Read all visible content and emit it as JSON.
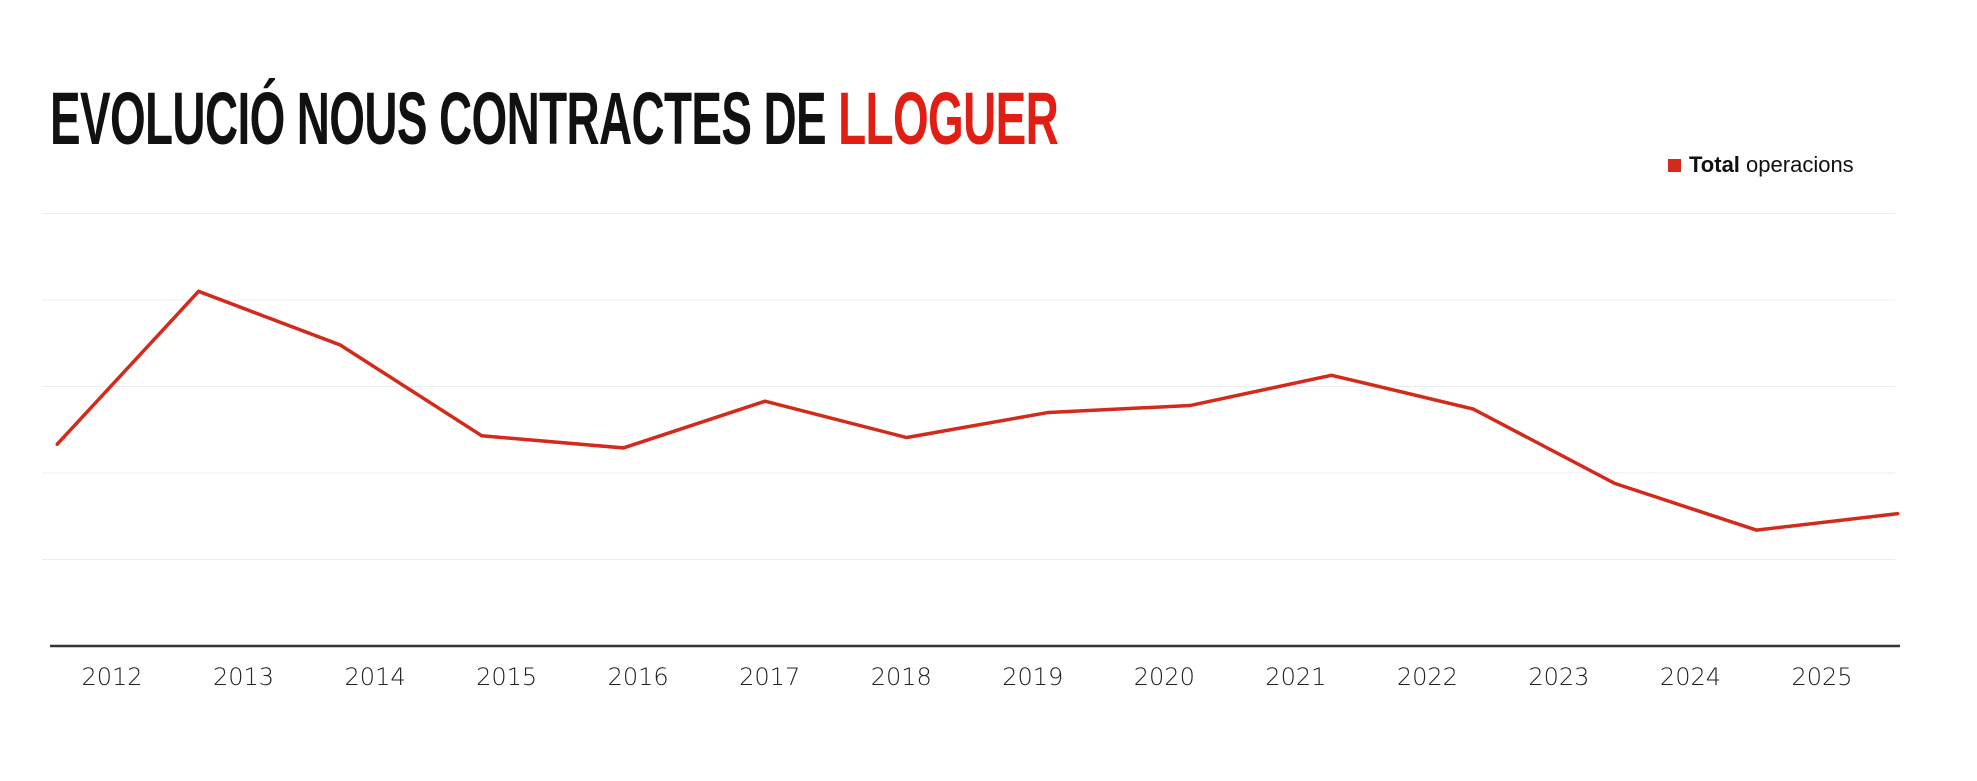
{
  "chart_data": {
    "type": "line",
    "title_main": "EVOLUCIÓ NOUS CONTRACTES DE",
    "title_highlight": "LLOGUER",
    "legend": {
      "bold": "Total",
      "rest": "operacions",
      "placement": "top-right"
    },
    "categories": [
      "2012",
      "2013",
      "2014",
      "2015",
      "2016",
      "2017",
      "2018",
      "2019",
      "2020",
      "2021",
      "2022",
      "2023",
      "2024",
      "2025"
    ],
    "series": [
      {
        "name": "Total operacions",
        "color": "#d42a1c",
        "values": [
          2.33,
          4.1,
          3.48,
          2.43,
          2.29,
          2.83,
          2.41,
          2.7,
          2.78,
          3.13,
          2.74,
          1.88,
          1.34,
          1.53
        ]
      }
    ],
    "ylim": [
      0,
      5
    ],
    "y_tick_labels_shown": false,
    "grid": true,
    "xlabel": "",
    "ylabel": ""
  }
}
